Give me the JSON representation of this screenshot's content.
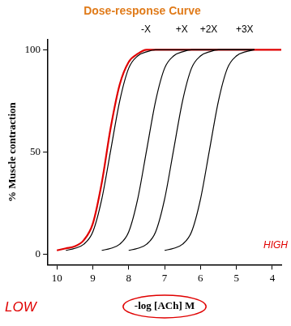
{
  "chart_data": {
    "type": "line",
    "title": "Dose-response Curve",
    "x_label": "-log [ACh] M",
    "y_label": "% Muscle contraction",
    "x": [
      10,
      9.75,
      9.5,
      9.25,
      9,
      8.75,
      8.5,
      8.25,
      8,
      7.75,
      7.5,
      7.25,
      7,
      6.75,
      6.5,
      6.25,
      6,
      5.75,
      5.5,
      5.25,
      5,
      4.75,
      4.5,
      4.25,
      4,
      3.75
    ],
    "series": [
      {
        "name": "-X",
        "color": "#000000",
        "values": [
          null,
          2,
          3,
          5,
          11,
          27,
          51,
          75,
          91,
          97,
          99,
          100,
          100,
          100,
          100,
          100,
          100,
          100,
          100,
          100,
          100,
          100,
          100,
          null,
          null,
          null
        ]
      },
      {
        "name": "+X",
        "color": "#000000",
        "values": [
          null,
          null,
          null,
          null,
          null,
          2,
          3,
          5,
          11,
          27,
          51,
          75,
          91,
          97,
          99,
          100,
          100,
          100,
          100,
          100,
          100,
          100,
          100,
          null,
          null,
          null
        ]
      },
      {
        "name": "+2X",
        "color": "#000000",
        "values": [
          null,
          null,
          null,
          null,
          null,
          null,
          null,
          null,
          2,
          3,
          5,
          11,
          27,
          51,
          75,
          91,
          97,
          99,
          100,
          100,
          100,
          100,
          100,
          null,
          null,
          null
        ]
      },
      {
        "name": "+3X",
        "color": "#000000",
        "values": [
          null,
          null,
          null,
          null,
          null,
          null,
          null,
          null,
          null,
          null,
          null,
          null,
          2,
          3,
          5,
          11,
          27,
          51,
          75,
          91,
          97,
          99,
          100,
          null,
          null,
          null
        ]
      },
      {
        "color": "#e00000",
        "values": [
          2,
          3,
          4,
          7,
          15,
          35,
          62,
          83,
          94,
          98,
          100,
          100,
          100,
          100,
          100,
          100,
          100,
          100,
          100,
          100,
          100,
          100,
          100,
          100,
          100,
          100
        ]
      }
    ],
    "xlim": [
      10.25,
      3.75
    ],
    "ylim": [
      -5,
      105
    ],
    "xticks": [
      10,
      9,
      8,
      7,
      6,
      5,
      4
    ],
    "yticks": [
      0,
      50,
      100
    ],
    "grid": false,
    "annotations": [
      "LOW",
      "HIGH"
    ]
  }
}
